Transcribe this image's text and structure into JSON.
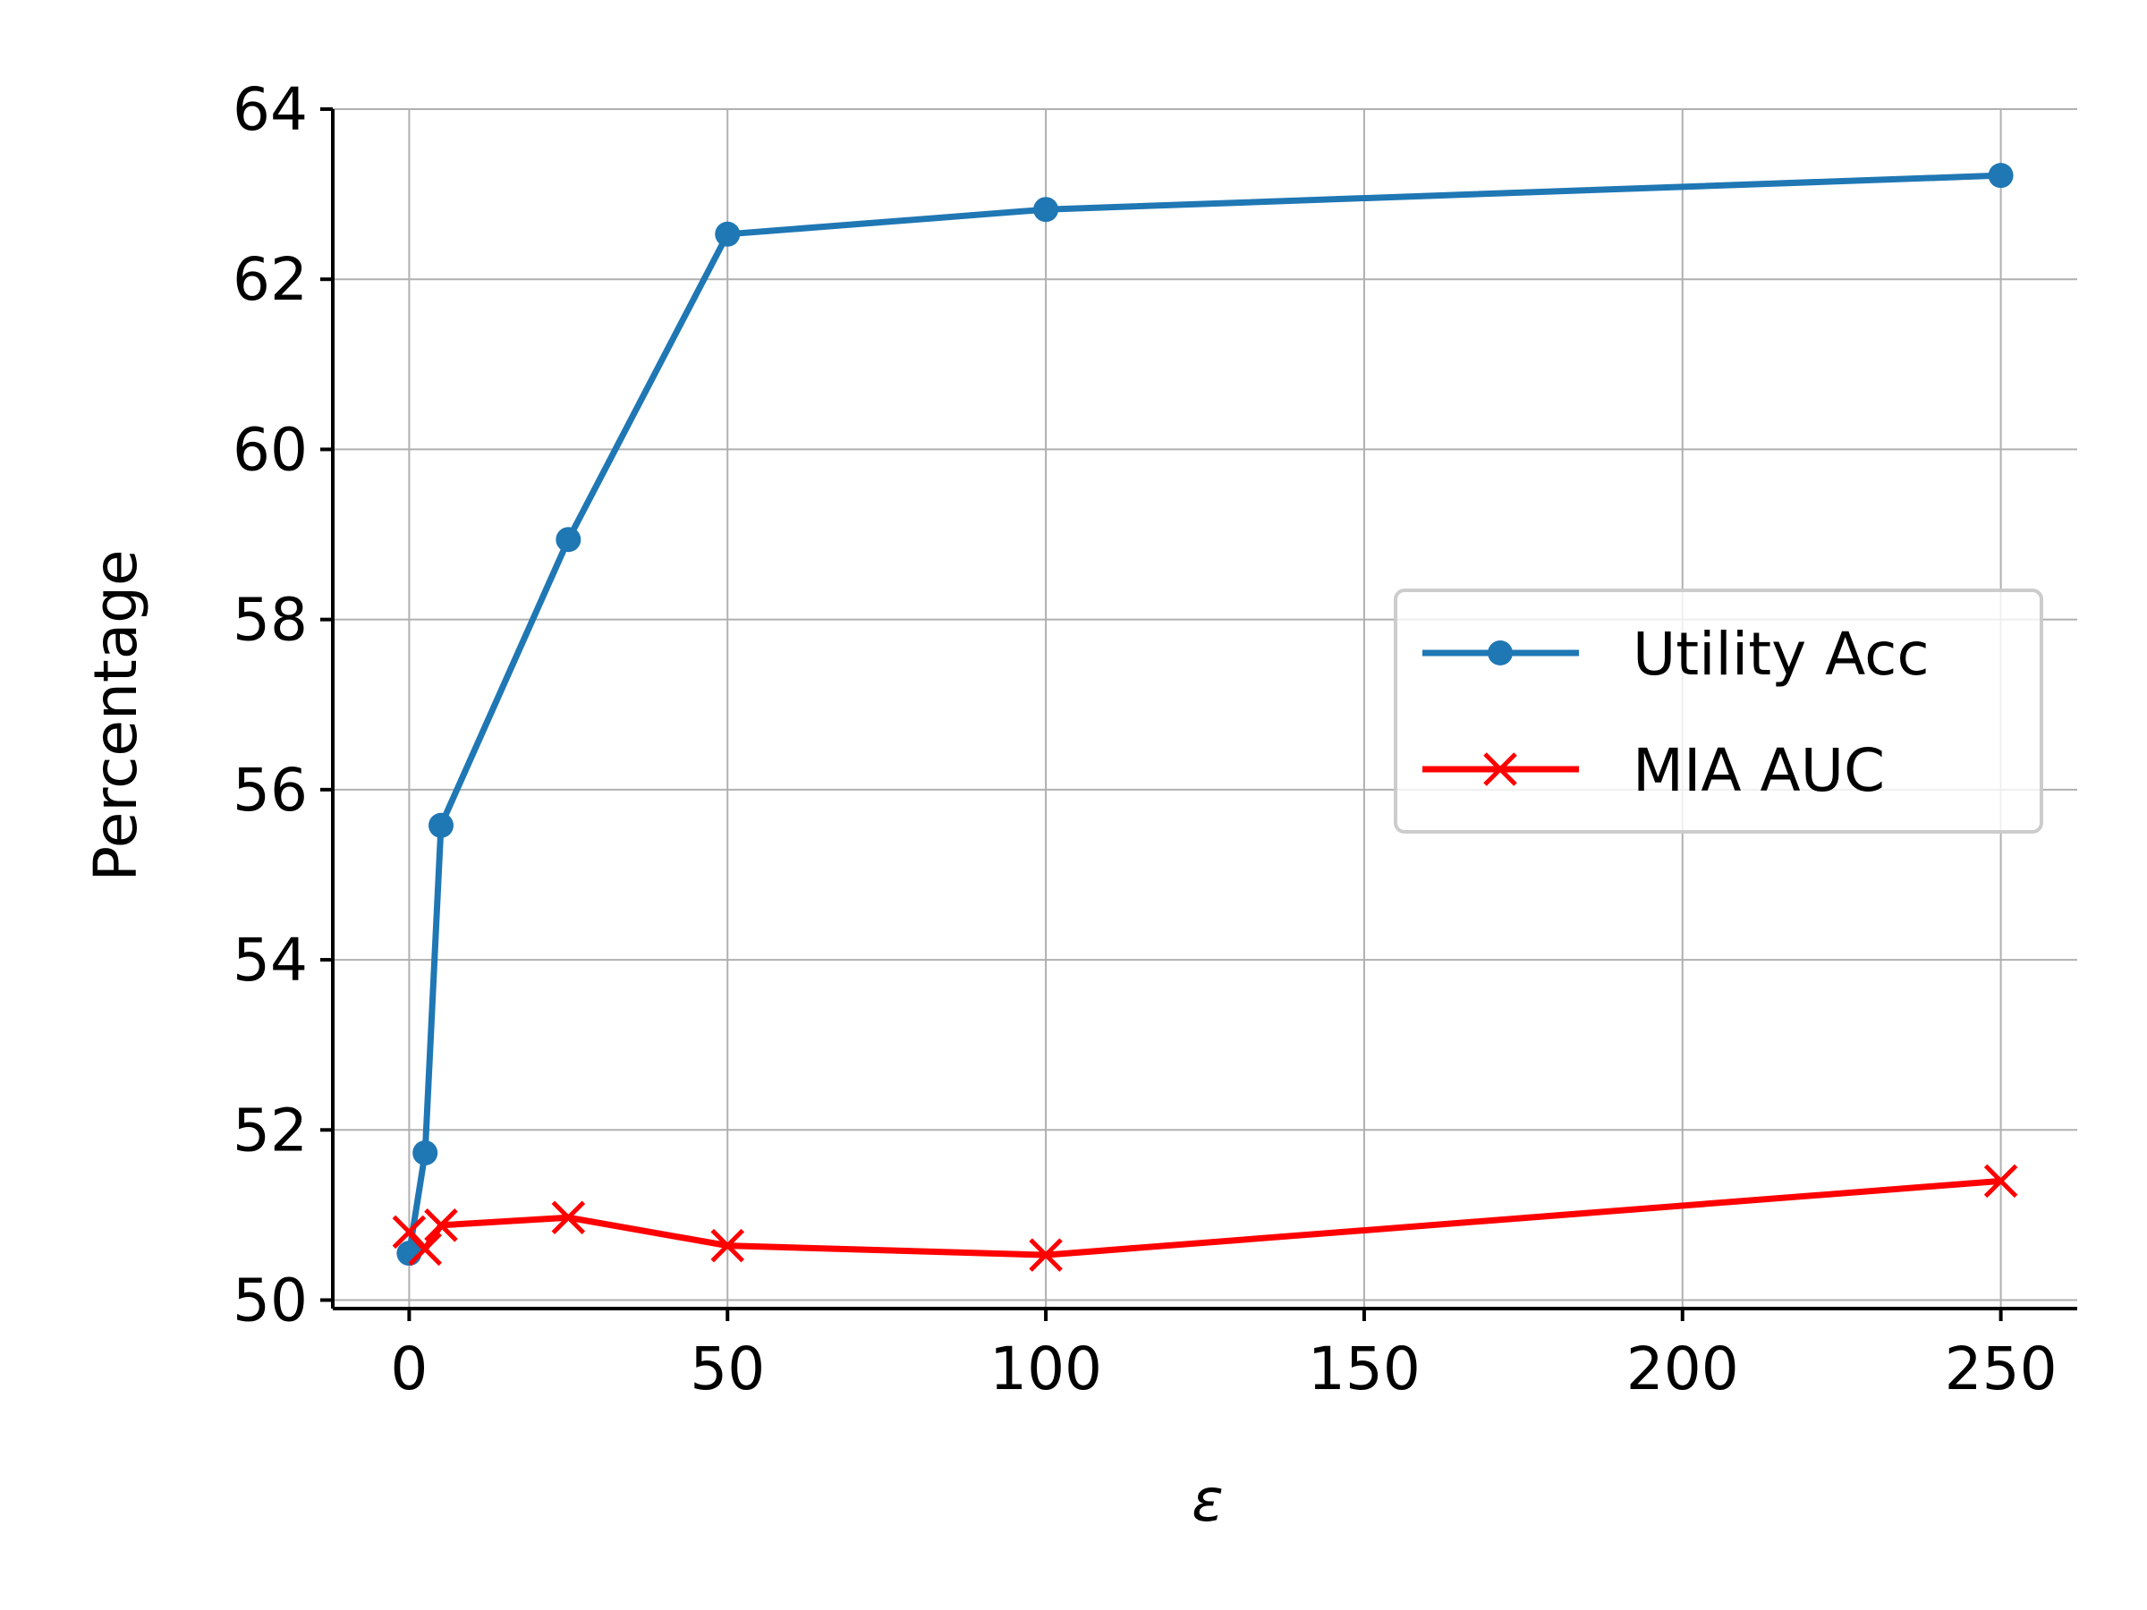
{
  "chart_data": {
    "type": "line",
    "title": "",
    "xlabel": "ε",
    "ylabel": "Percentage",
    "xlim": [
      -12,
      262
    ],
    "ylim": [
      49.9,
      64
    ],
    "xticks": [
      0,
      50,
      100,
      150,
      200,
      250
    ],
    "yticks": [
      50,
      52,
      54,
      56,
      58,
      60,
      62,
      64
    ],
    "grid": true,
    "legend_position": "center-right",
    "series": [
      {
        "name": "Utility Acc",
        "color": "#1f77b4",
        "marker": "circle",
        "x": [
          0,
          2.5,
          5,
          25,
          50,
          100,
          250
        ],
        "y": [
          50.55,
          51.73,
          55.58,
          58.94,
          62.53,
          62.82,
          63.22
        ]
      },
      {
        "name": "MIA AUC",
        "color": "#ff0000",
        "marker": "x",
        "x": [
          0,
          2.5,
          5,
          25,
          50,
          100,
          250
        ],
        "y": [
          50.8,
          50.6,
          50.88,
          50.97,
          50.64,
          50.53,
          51.4
        ]
      }
    ]
  }
}
